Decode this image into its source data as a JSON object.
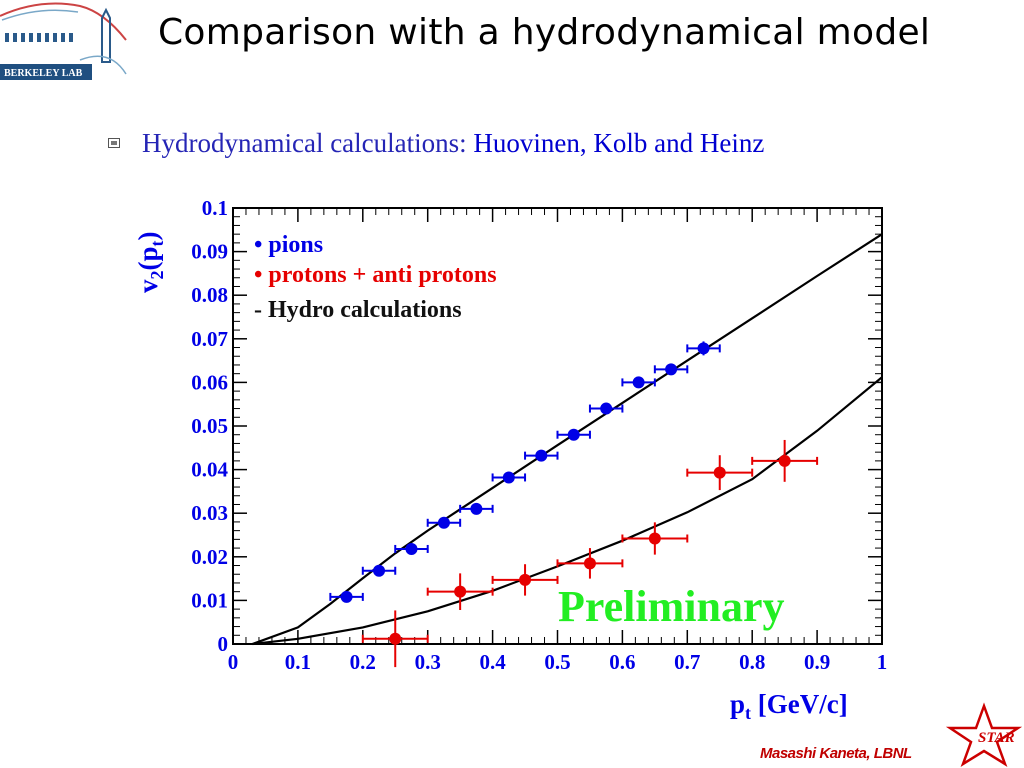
{
  "title": "Comparison with a hydrodynamical model",
  "logo": {
    "text": "BERKELEY LAB",
    "icon": "berkeley-lab-logo"
  },
  "bullet": {
    "icon": "square-bullet-icon",
    "text": "Hydrodynamical calculations: ",
    "authors": "Huovinen, Kolb and Heinz"
  },
  "footer": {
    "author": "Masashi Kaneta, LBNL",
    "star_logo_text": "STAR",
    "star_color": "#cc0000"
  },
  "chart_data": {
    "type": "scatter",
    "xlabel": "p",
    "xlabel_sub": "t",
    "xlabel_unit": " [GeV/c]",
    "ylabel": "v",
    "ylabel_sub2": "2",
    "ylabel_arg": "(p",
    "ylabel_sub_t": "t",
    "ylabel_close": ")",
    "xlim": [
      0,
      1
    ],
    "ylim": [
      0,
      0.1
    ],
    "x_ticks": [
      "0",
      "0.1",
      "0.2",
      "0.3",
      "0.4",
      "0.5",
      "0.6",
      "0.7",
      "0.8",
      "0.9",
      "1"
    ],
    "y_ticks": [
      "0",
      "0.01",
      "0.02",
      "0.03",
      "0.04",
      "0.05",
      "0.06",
      "0.07",
      "0.08",
      "0.09",
      "0.1"
    ],
    "legend_placement": "top-left",
    "legend": [
      {
        "text": "• pions",
        "color": "#0000e6"
      },
      {
        "text": "• protons + anti protons",
        "color": "#e60000"
      },
      {
        "text": "- Hydro calculations",
        "color": "#111111"
      }
    ],
    "annotation": {
      "text": "Preliminary",
      "color": "#22ee22"
    },
    "series": [
      {
        "name": "pions",
        "color": "#0000e6",
        "points": [
          {
            "x": 0.175,
            "y": 0.0108,
            "xerr": 0.025,
            "yerr": 0.0007
          },
          {
            "x": 0.225,
            "y": 0.0168,
            "xerr": 0.025,
            "yerr": 0.0006
          },
          {
            "x": 0.275,
            "y": 0.0218,
            "xerr": 0.025,
            "yerr": 0.0006
          },
          {
            "x": 0.325,
            "y": 0.0278,
            "xerr": 0.025,
            "yerr": 0.0006
          },
          {
            "x": 0.375,
            "y": 0.031,
            "xerr": 0.025,
            "yerr": 0.0006
          },
          {
            "x": 0.425,
            "y": 0.0382,
            "xerr": 0.025,
            "yerr": 0.0006
          },
          {
            "x": 0.475,
            "y": 0.0432,
            "xerr": 0.025,
            "yerr": 0.0007
          },
          {
            "x": 0.525,
            "y": 0.048,
            "xerr": 0.025,
            "yerr": 0.0007
          },
          {
            "x": 0.575,
            "y": 0.054,
            "xerr": 0.025,
            "yerr": 0.0008
          },
          {
            "x": 0.625,
            "y": 0.06,
            "xerr": 0.025,
            "yerr": 0.0009
          },
          {
            "x": 0.675,
            "y": 0.063,
            "xerr": 0.025,
            "yerr": 0.0011
          },
          {
            "x": 0.725,
            "y": 0.0678,
            "xerr": 0.025,
            "yerr": 0.0016
          }
        ]
      },
      {
        "name": "protons + anti protons",
        "color": "#e60000",
        "points": [
          {
            "x": 0.25,
            "y": 0.0012,
            "xerr": 0.05,
            "yerr": 0.0065
          },
          {
            "x": 0.35,
            "y": 0.012,
            "xerr": 0.05,
            "yerr": 0.0042
          },
          {
            "x": 0.45,
            "y": 0.0147,
            "xerr": 0.05,
            "yerr": 0.0036
          },
          {
            "x": 0.55,
            "y": 0.0185,
            "xerr": 0.05,
            "yerr": 0.0035
          },
          {
            "x": 0.65,
            "y": 0.0242,
            "xerr": 0.05,
            "yerr": 0.0037
          },
          {
            "x": 0.75,
            "y": 0.0393,
            "xerr": 0.05,
            "yerr": 0.004
          },
          {
            "x": 0.85,
            "y": 0.042,
            "xerr": 0.05,
            "yerr": 0.0048
          }
        ]
      }
    ],
    "curves": [
      {
        "name": "Hydro calculations (pions)",
        "color": "#000000",
        "x": [
          0.03,
          0.1,
          0.15,
          0.2,
          0.25,
          0.3,
          0.35,
          0.4,
          0.5,
          0.6,
          0.7,
          0.8,
          0.9,
          1.0
        ],
        "y": [
          0.0,
          0.0038,
          0.0092,
          0.0151,
          0.0208,
          0.026,
          0.0309,
          0.0358,
          0.0456,
          0.0553,
          0.065,
          0.0747,
          0.0844,
          0.094
        ]
      },
      {
        "name": "Hydro calculations (protons)",
        "color": "#000000",
        "x": [
          0.03,
          0.1,
          0.2,
          0.3,
          0.4,
          0.5,
          0.6,
          0.7,
          0.8,
          0.9,
          1.0
        ],
        "y": [
          0.0,
          0.0012,
          0.0038,
          0.0075,
          0.0122,
          0.0178,
          0.0237,
          0.0302,
          0.0378,
          0.0489,
          0.0612
        ]
      }
    ]
  }
}
